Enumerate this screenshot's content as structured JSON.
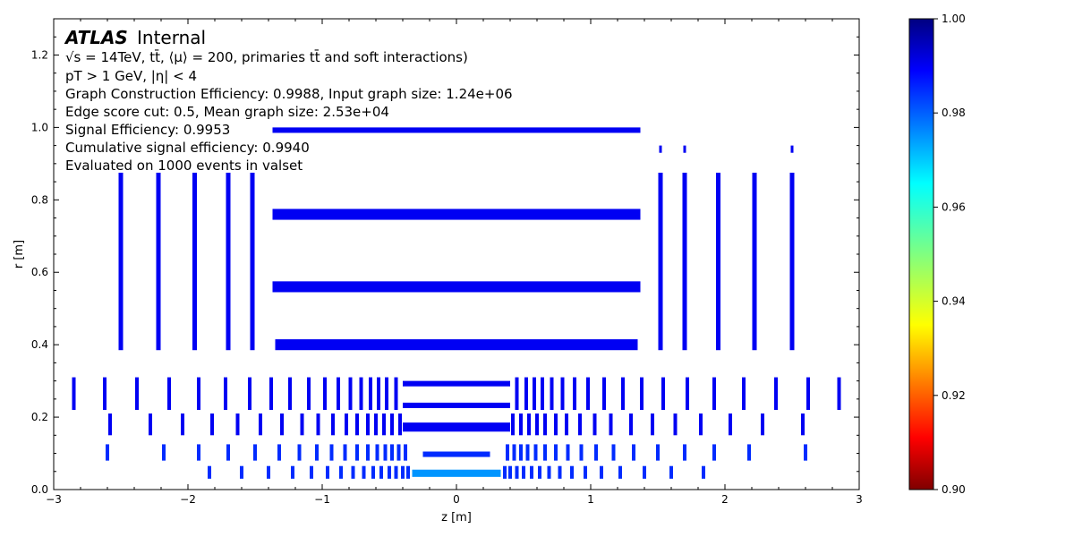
{
  "chart_data": {
    "type": "heatmap",
    "xlabel": "z [m]",
    "ylabel": "r [m]",
    "xlim": [
      -3,
      3
    ],
    "ylim": [
      0,
      1.3
    ],
    "x_ticks": [
      "−3",
      "−2",
      "−1",
      "0",
      "1",
      "2",
      "3"
    ],
    "y_ticks": [
      "0.0",
      "0.2",
      "0.4",
      "0.6",
      "0.8",
      "1.0",
      "1.2"
    ],
    "colorbar": {
      "range": [
        0.9,
        1.0
      ],
      "ticks": [
        "0.90",
        "0.92",
        "0.94",
        "0.96",
        "0.98",
        "1.00"
      ],
      "colormap": "jet"
    },
    "annotations": {
      "experiment": "ATLAS",
      "status": "Internal",
      "line1": "√s = 14TeV, tt̄, ⟨μ⟩ = 200, primaries tt̄ and soft interactions)",
      "line2": "pT > 1 GeV, |η| < 4",
      "line3": "Graph Construction Efficiency: 0.9988, Input graph size:  1.24e+06",
      "line4": "Edge score cut: 0.5, Mean graph size: 2.53e+04",
      "line5": "Signal Efficiency: 0.9953",
      "line6": "Cumulative signal efficiency: 0.9940",
      "line7": "Evaluated on 1000 events in valset"
    },
    "barrel_layers": [
      {
        "r_range": [
          0.985,
          1.0
        ],
        "z_range": [
          -1.37,
          1.37
        ],
        "value": 0.99
      },
      {
        "r_range": [
          0.745,
          0.775
        ],
        "z_range": [
          -1.37,
          1.37
        ],
        "value": 0.99
      },
      {
        "r_range": [
          0.545,
          0.575
        ],
        "z_range": [
          -1.37,
          1.37
        ],
        "value": 0.99
      },
      {
        "r_range": [
          0.385,
          0.415
        ],
        "z_range": [
          -1.35,
          1.35
        ],
        "value": 0.99
      },
      {
        "r_range": [
          0.285,
          0.3
        ],
        "z_range": [
          -0.4,
          0.4
        ],
        "value": 0.99
      },
      {
        "r_range": [
          0.225,
          0.24
        ],
        "z_range": [
          -0.4,
          0.4
        ],
        "value": 0.99
      },
      {
        "r_range": [
          0.16,
          0.185
        ],
        "z_range": [
          -0.4,
          0.4
        ],
        "value": 0.99
      },
      {
        "r_range": [
          0.09,
          0.105
        ],
        "z_range": [
          -0.25,
          0.25
        ],
        "value": 0.985
      },
      {
        "r_range": [
          0.035,
          0.055
        ],
        "z_range": [
          -0.33,
          0.33
        ],
        "value": 0.975
      }
    ],
    "strip_endcap_disks_z": [
      1.52,
      1.7,
      1.95,
      2.22,
      2.5
    ],
    "strip_endcap_disks_r": [
      0.385,
      0.875
    ],
    "strip_endcap_outer_z": [
      1.52,
      1.7,
      2.5
    ],
    "strip_endcap_outer_r": [
      0.93,
      0.95
    ],
    "pixel_endcap_rings": [
      {
        "z": [
          0.45,
          0.52,
          0.58,
          0.64,
          0.71,
          0.79,
          0.88,
          0.98,
          1.1,
          1.24,
          1.38,
          1.54,
          1.72,
          1.92,
          2.14,
          2.38,
          2.62,
          2.85
        ],
        "r_range": [
          0.22,
          0.31
        ],
        "value": 0.99
      },
      {
        "z": [
          0.42,
          0.48,
          0.54,
          0.6,
          0.66,
          0.74,
          0.82,
          0.92,
          1.03,
          1.15,
          1.3,
          1.46,
          1.63,
          1.82,
          2.04,
          2.28,
          2.58
        ],
        "r_range": [
          0.15,
          0.21
        ],
        "value": 0.99
      },
      {
        "z": [
          0.38,
          0.43,
          0.48,
          0.53,
          0.59,
          0.66,
          0.74,
          0.83,
          0.93,
          1.04,
          1.17,
          1.32,
          1.5,
          1.7,
          1.92,
          2.18,
          2.6
        ],
        "r_range": [
          0.08,
          0.125
        ],
        "value": 0.985
      },
      {
        "z": [
          0.36,
          0.4,
          0.45,
          0.5,
          0.56,
          0.62,
          0.69,
          0.77,
          0.86,
          0.96,
          1.08,
          1.22,
          1.4,
          1.6,
          1.84
        ],
        "r_range": [
          0.03,
          0.065
        ],
        "value": 0.985
      }
    ]
  }
}
